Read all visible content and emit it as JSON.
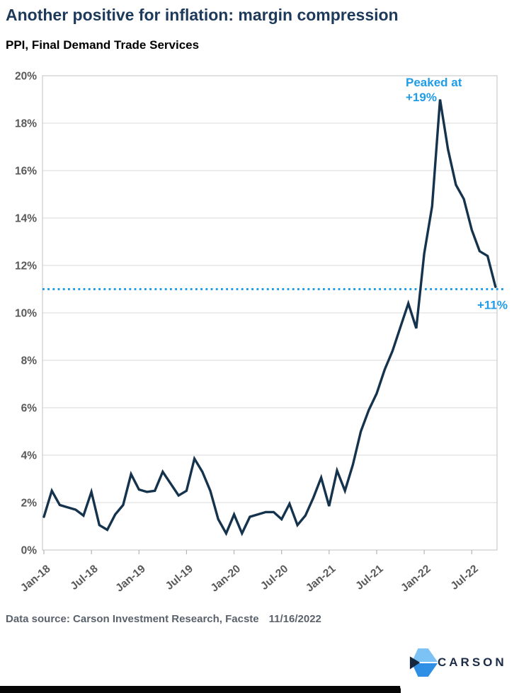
{
  "header": {
    "title": "Another positive for inflation: margin compression",
    "subtitle": "PPI, Final Demand Trade Services"
  },
  "chart_data": {
    "type": "line",
    "title": "PPI, Final Demand Trade Services",
    "x": [
      "Jan-18",
      "Feb-18",
      "Mar-18",
      "Apr-18",
      "May-18",
      "Jun-18",
      "Jul-18",
      "Aug-18",
      "Sep-18",
      "Oct-18",
      "Nov-18",
      "Dec-18",
      "Jan-19",
      "Feb-19",
      "Mar-19",
      "Apr-19",
      "May-19",
      "Jun-19",
      "Jul-19",
      "Aug-19",
      "Sep-19",
      "Oct-19",
      "Nov-19",
      "Dec-19",
      "Jan-20",
      "Feb-20",
      "Mar-20",
      "Apr-20",
      "May-20",
      "Jun-20",
      "Jul-20",
      "Aug-20",
      "Sep-20",
      "Oct-20",
      "Nov-20",
      "Dec-20",
      "Jan-21",
      "Feb-21",
      "Mar-21",
      "Apr-21",
      "May-21",
      "Jun-21",
      "Jul-21",
      "Aug-21",
      "Sep-21",
      "Oct-21",
      "Nov-21",
      "Dec-21",
      "Jan-22",
      "Feb-22",
      "Mar-22",
      "Apr-22",
      "May-22",
      "Jun-22",
      "Jul-22",
      "Aug-22",
      "Sep-22",
      "Oct-22"
    ],
    "series": [
      {
        "name": "PPI Final Demand Trade Services, YoY %",
        "color": "#16334d",
        "values": [
          1.4,
          2.5,
          1.9,
          1.8,
          1.7,
          1.45,
          2.45,
          1.05,
          0.85,
          1.5,
          1.9,
          3.2,
          2.55,
          2.45,
          2.5,
          3.3,
          2.8,
          2.3,
          2.5,
          3.85,
          3.3,
          2.5,
          1.3,
          0.7,
          1.5,
          0.7,
          1.4,
          1.5,
          1.6,
          1.6,
          1.3,
          1.95,
          1.05,
          1.45,
          2.2,
          3.05,
          1.85,
          3.35,
          2.5,
          3.6,
          5.0,
          5.9,
          6.6,
          7.6,
          8.4,
          9.4,
          10.4,
          9.35,
          12.5,
          14.5,
          19.0,
          16.9,
          15.4,
          14.8,
          13.5,
          12.6,
          12.4,
          11.1
        ]
      }
    ],
    "ylim": [
      0,
      20
    ],
    "y_tick_labels": [
      "0%",
      "2%",
      "4%",
      "6%",
      "8%",
      "10%",
      "12%",
      "14%",
      "16%",
      "18%",
      "20%"
    ],
    "x_tick_labels": [
      "Jan-18",
      "Jul-18",
      "Jan-19",
      "Jul-19",
      "Jan-20",
      "Jul-20",
      "Jan-21",
      "Jul-21",
      "Jan-22",
      "Jul-22"
    ],
    "x_tick_every_months": 6,
    "grid": true,
    "legend_position": "none",
    "axis_label_color": "#595959",
    "grid_color": "#d9d9d9",
    "border_color": "#cbcbcb",
    "reference_line": {
      "value": 11,
      "label": "+11%",
      "color": "#1f9ce8",
      "style": "dotted"
    },
    "peak_annotation": {
      "lines": [
        "Peaked at",
        "+19%"
      ],
      "color": "#1f9ce8",
      "at_x": "Mar-22",
      "at_value": 19
    }
  },
  "footer": {
    "source": "Data source: Carson Investment Research, Facste",
    "date": "11/16/2022"
  },
  "logo": {
    "text": "CARSON",
    "icon": "carson-chevron-mark",
    "colors": {
      "light_blue": "#7cc2f4",
      "mid_blue": "#2e8fe4",
      "navy": "#16263e",
      "text": "#1b2b48"
    }
  }
}
